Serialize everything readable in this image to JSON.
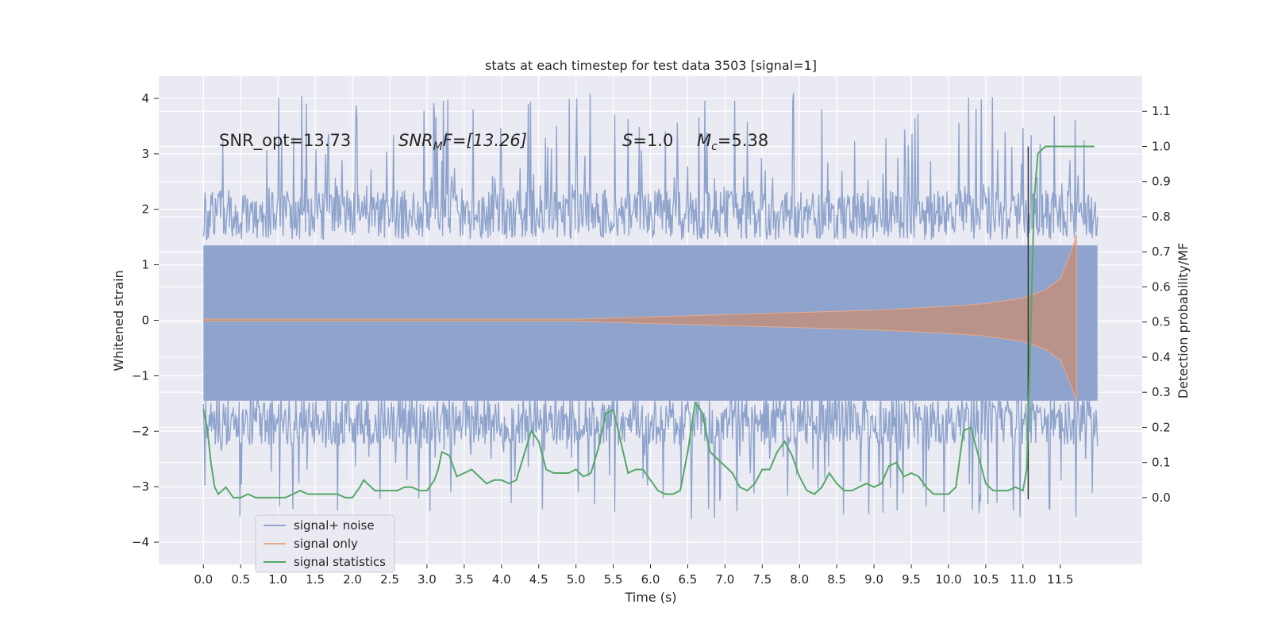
{
  "chart_data": {
    "type": "line",
    "title": "stats at each timestep for test data 3503 [signal=1]",
    "xlabel": "Time (s)",
    "ylabel_left": "Whitened strain",
    "ylabel_right": "Detection probability/MF",
    "xlim": [
      -0.6,
      12.6
    ],
    "ylim_left": [
      -4.4,
      4.4
    ],
    "ylim_right": [
      -0.19,
      1.2
    ],
    "x_ticks": [
      "0.0",
      "0.5",
      "1.0",
      "1.5",
      "2.0",
      "2.5",
      "3.0",
      "3.5",
      "4.0",
      "4.5",
      "5.0",
      "5.5",
      "6.0",
      "6.5",
      "7.0",
      "7.5",
      "8.0",
      "8.5",
      "9.0",
      "9.5",
      "10.0",
      "10.5",
      "11.0",
      "11.5"
    ],
    "y_ticks_left": [
      "4",
      "3",
      "2",
      "1",
      "0",
      "−1",
      "−2",
      "−3",
      "−4"
    ],
    "y_ticks_right": [
      "1.1",
      "1.0",
      "0.9",
      "0.8",
      "0.7",
      "0.6",
      "0.5",
      "0.4",
      "0.3",
      "0.2",
      "0.1",
      "0.0"
    ],
    "grid": true,
    "legend_position": "bottom-left",
    "colors": {
      "background": "#eaeaf2",
      "grid": "#ffffff",
      "signal_noise": "#8fa4cd",
      "signal_only": "#dd8452",
      "signal_statistics": "#55a868",
      "event_marker": "#333333"
    },
    "annotations": {
      "snr_opt": "SNR_opt=13.73",
      "snr_mf_main": "SNR",
      "snr_mf_sub": "M",
      "snr_mf_rest": "F=[13.26]",
      "s_main": "S",
      "s_rest": "=1.0",
      "mc_main": "M",
      "mc_sub": "c",
      "mc_rest": "=5.38"
    },
    "series": [
      {
        "name": "signal+ noise",
        "x_range": [
          0.0,
          12.0
        ],
        "body_envelope": [
          -1.75,
          1.95
        ],
        "peak_range": [
          -3.6,
          4.1
        ]
      },
      {
        "name": "signal only",
        "envelope": [
          {
            "t": 0.0,
            "amp": 0.02
          },
          {
            "t": 5.0,
            "amp": 0.02
          },
          {
            "t": 6.0,
            "amp": 0.06
          },
          {
            "t": 7.0,
            "amp": 0.1
          },
          {
            "t": 8.0,
            "amp": 0.14
          },
          {
            "t": 9.0,
            "amp": 0.18
          },
          {
            "t": 10.0,
            "amp": 0.25
          },
          {
            "t": 10.5,
            "amp": 0.3
          },
          {
            "t": 11.0,
            "amp": 0.4
          },
          {
            "t": 11.3,
            "amp": 0.55
          },
          {
            "t": 11.5,
            "amp": 0.75
          },
          {
            "t": 11.65,
            "amp": 1.25
          },
          {
            "t": 11.72,
            "amp": 1.55
          }
        ]
      },
      {
        "name": "signal statistics",
        "x": [
          0.0,
          0.05,
          0.1,
          0.15,
          0.2,
          0.3,
          0.4,
          0.5,
          0.6,
          0.7,
          0.8,
          0.9,
          1.0,
          1.1,
          1.2,
          1.3,
          1.4,
          1.5,
          1.6,
          1.7,
          1.8,
          1.9,
          2.0,
          2.1,
          2.15,
          2.2,
          2.3,
          2.4,
          2.5,
          2.6,
          2.7,
          2.8,
          2.9,
          3.0,
          3.1,
          3.15,
          3.2,
          3.3,
          3.4,
          3.5,
          3.6,
          3.7,
          3.8,
          3.9,
          4.0,
          4.1,
          4.2,
          4.3,
          4.4,
          4.5,
          4.6,
          4.7,
          4.8,
          4.9,
          5.0,
          5.1,
          5.2,
          5.3,
          5.4,
          5.5,
          5.6,
          5.7,
          5.8,
          5.9,
          6.0,
          6.1,
          6.2,
          6.3,
          6.4,
          6.5,
          6.6,
          6.7,
          6.8,
          6.9,
          7.0,
          7.1,
          7.2,
          7.3,
          7.4,
          7.5,
          7.6,
          7.7,
          7.8,
          7.9,
          8.0,
          8.1,
          8.2,
          8.3,
          8.4,
          8.5,
          8.6,
          8.7,
          8.8,
          8.9,
          9.0,
          9.1,
          9.2,
          9.3,
          9.4,
          9.5,
          9.6,
          9.7,
          9.8,
          9.9,
          10.0,
          10.1,
          10.2,
          10.3,
          10.4,
          10.5,
          10.6,
          10.7,
          10.8,
          10.9,
          11.0,
          11.05,
          11.1,
          11.15,
          11.2,
          11.3,
          11.5,
          11.8,
          11.95
        ],
        "y": [
          0.25,
          0.2,
          0.1,
          0.03,
          0.01,
          0.03,
          0.0,
          0.0,
          0.01,
          0.0,
          0.0,
          0.0,
          0.0,
          0.0,
          0.01,
          0.02,
          0.01,
          0.01,
          0.01,
          0.01,
          0.01,
          0.0,
          0.0,
          0.03,
          0.05,
          0.04,
          0.02,
          0.02,
          0.02,
          0.02,
          0.03,
          0.03,
          0.02,
          0.02,
          0.05,
          0.08,
          0.13,
          0.12,
          0.06,
          0.07,
          0.08,
          0.06,
          0.04,
          0.05,
          0.05,
          0.04,
          0.05,
          0.12,
          0.19,
          0.16,
          0.08,
          0.07,
          0.07,
          0.07,
          0.08,
          0.06,
          0.07,
          0.14,
          0.24,
          0.25,
          0.16,
          0.07,
          0.08,
          0.08,
          0.05,
          0.02,
          0.01,
          0.01,
          0.02,
          0.13,
          0.27,
          0.24,
          0.13,
          0.11,
          0.09,
          0.07,
          0.03,
          0.02,
          0.04,
          0.08,
          0.08,
          0.13,
          0.16,
          0.12,
          0.06,
          0.02,
          0.01,
          0.03,
          0.07,
          0.04,
          0.02,
          0.02,
          0.03,
          0.04,
          0.03,
          0.04,
          0.09,
          0.1,
          0.06,
          0.07,
          0.06,
          0.03,
          0.01,
          0.01,
          0.01,
          0.03,
          0.19,
          0.2,
          0.12,
          0.04,
          0.02,
          0.02,
          0.02,
          0.03,
          0.02,
          0.08,
          0.45,
          0.85,
          0.98,
          1.0,
          1.0,
          1.0,
          1.0
        ]
      }
    ],
    "event_marker": {
      "t": 11.07,
      "y_from": -0.005,
      "y_to": 1.0
    }
  }
}
